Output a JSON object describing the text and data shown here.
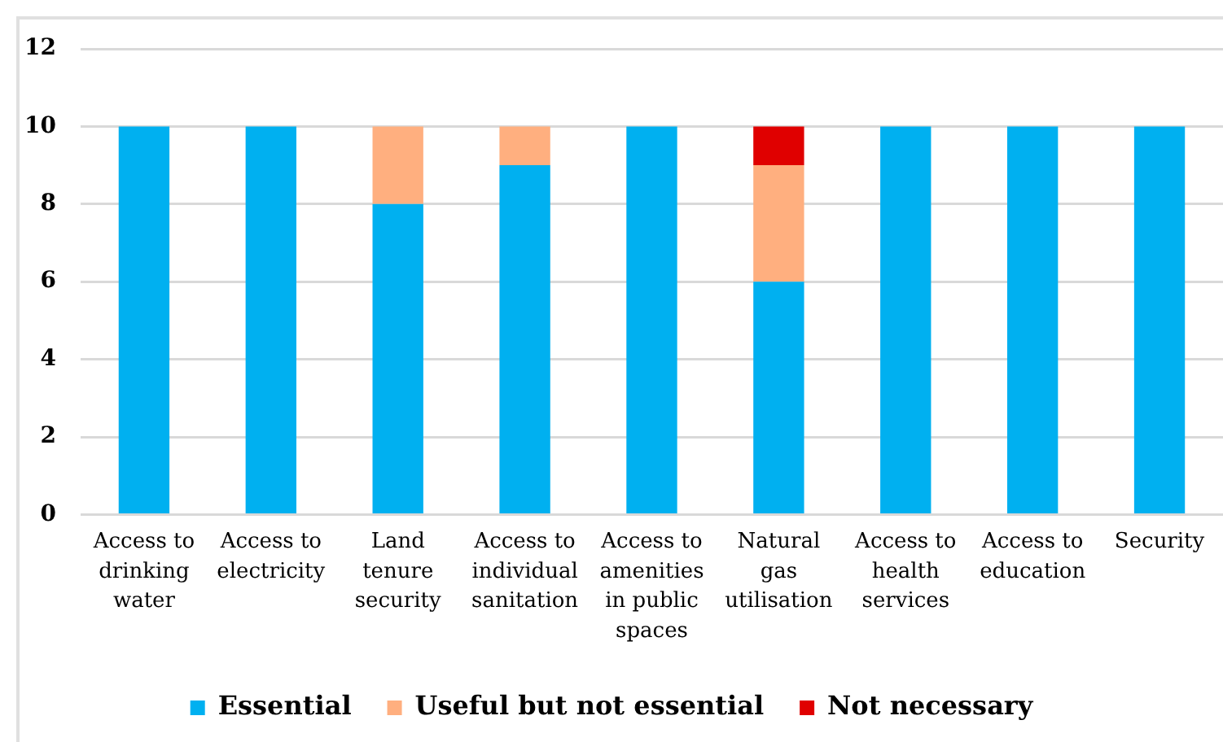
{
  "chart_data": {
    "type": "bar",
    "stacked": true,
    "categories": [
      "Access to drinking water",
      "Access to electricity",
      "Land tenure security",
      "Access to individual sanitation",
      "Access to amenities in public spaces",
      "Natural gas utilisation",
      "Access to health services",
      "Access to education",
      "Security"
    ],
    "series": [
      {
        "name": "Essential",
        "color": "#00b0f0",
        "values": [
          10,
          10,
          8,
          9,
          10,
          6,
          10,
          10,
          10
        ]
      },
      {
        "name": "Useful but not essential",
        "color": "#ffaf7f",
        "values": [
          0,
          0,
          2,
          1,
          0,
          3,
          0,
          0,
          0
        ]
      },
      {
        "name": "Not necessary",
        "color": "#e00000",
        "values": [
          0,
          0,
          0,
          0,
          0,
          1,
          0,
          0,
          0
        ]
      }
    ],
    "ylim": [
      0,
      12
    ],
    "yticks": [
      0,
      2,
      4,
      6,
      8,
      10,
      12
    ],
    "grid": "y",
    "legend": "bottom"
  }
}
